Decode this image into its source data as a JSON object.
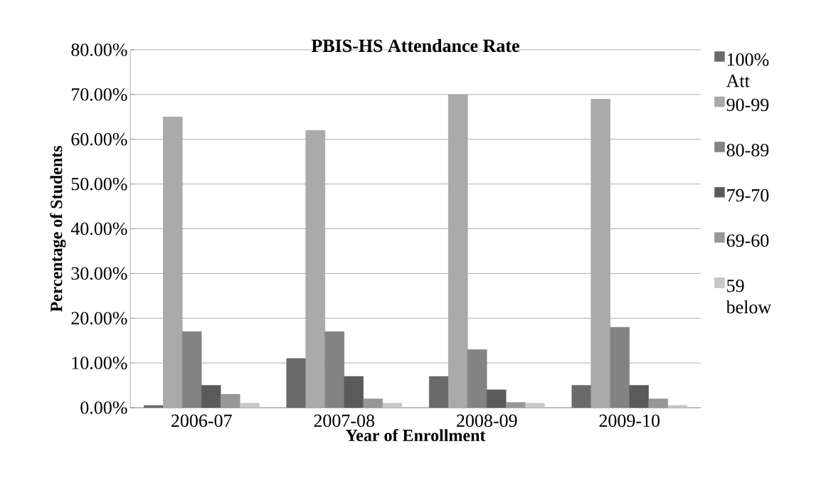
{
  "chart_data": {
    "type": "bar",
    "title": "PBIS-HS Attendance Rate",
    "xlabel": "Year of Enrollment",
    "ylabel": "Percentage of Students",
    "categories": [
      "2006-07",
      "2007-08",
      "2008-09",
      "2009-10"
    ],
    "series": [
      {
        "name": "100% Att",
        "color": "#6a6a6a",
        "values": [
          0.5,
          11,
          7,
          5
        ]
      },
      {
        "name": "90-99",
        "color": "#aaaaaa",
        "values": [
          65,
          62,
          70,
          69
        ]
      },
      {
        "name": "80-89",
        "color": "#838383",
        "values": [
          17,
          17,
          13,
          18
        ]
      },
      {
        "name": "79-70",
        "color": "#5a5a5a",
        "values": [
          5,
          7,
          4,
          5
        ]
      },
      {
        "name": "69-60",
        "color": "#979797",
        "values": [
          3,
          2,
          1.2,
          2
        ]
      },
      {
        "name": "59 below",
        "color": "#c8c8c8",
        "values": [
          1,
          1,
          1,
          0.5
        ]
      }
    ],
    "ylim": [
      0,
      80
    ],
    "yticks": [
      {
        "value": 0,
        "label": "0.00%"
      },
      {
        "value": 10,
        "label": "10.00%"
      },
      {
        "value": 20,
        "label": "20.00%"
      },
      {
        "value": 30,
        "label": "30.00%"
      },
      {
        "value": 40,
        "label": "40.00%"
      },
      {
        "value": 50,
        "label": "50.00%"
      },
      {
        "value": 60,
        "label": "60.00%"
      },
      {
        "value": 70,
        "label": "70.00%"
      },
      {
        "value": 80,
        "label": "80.00%"
      }
    ],
    "grid": "y",
    "legend": "right"
  }
}
